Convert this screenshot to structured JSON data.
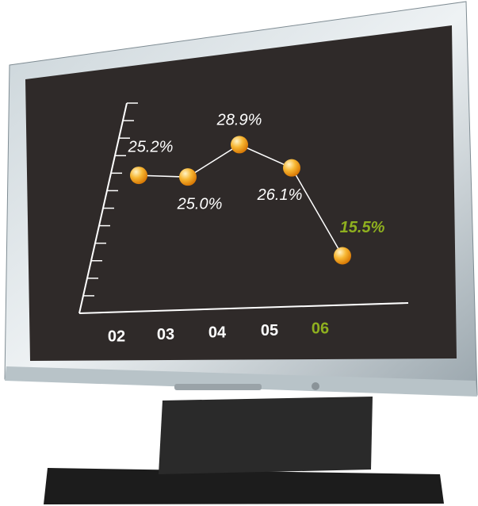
{
  "chart_data": {
    "type": "line",
    "categories": [
      "02",
      "03",
      "04",
      "05",
      "06"
    ],
    "values": [
      25.2,
      25.0,
      28.9,
      26.1,
      15.5
    ],
    "value_labels": [
      "25.2%",
      "25.0%",
      "28.9%",
      "26.1%",
      "15.5%"
    ],
    "label_colors": [
      "#ffffff",
      "#ffffff",
      "#ffffff",
      "#ffffff",
      "#8fb01f"
    ],
    "color": "#f5a623",
    "line_color": "#ffffff",
    "ylim": [
      10,
      32
    ]
  }
}
